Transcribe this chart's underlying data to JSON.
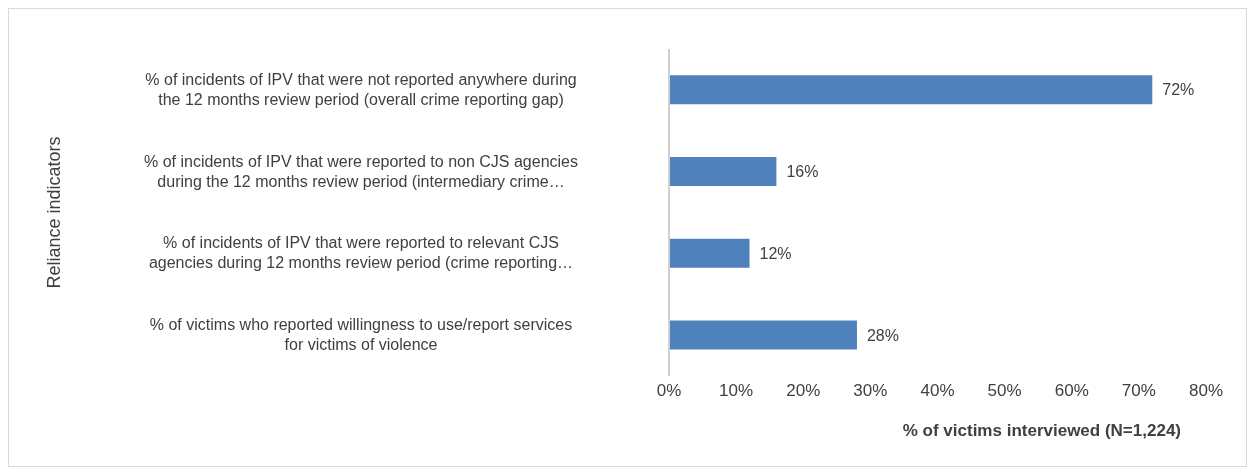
{
  "chart_data": {
    "type": "bar",
    "orientation": "horizontal",
    "ylabel": "Reliance indicators",
    "xlabel": "% of victims interviewed (N=1,224)",
    "categories": [
      "% of incidents of IPV that were not reported anywhere during the 12 months review period (overall crime reporting gap)",
      "% of incidents of IPV that were reported to non CJS agencies during the 12 months review period (intermediary crime…",
      "% of incidents of IPV that were reported to relevant CJS agencies during 12 months review period (crime reporting…",
      "% of victims who reported willingness to use/report services for victims of violence"
    ],
    "values": [
      72,
      16,
      12,
      28
    ],
    "value_labels": [
      "72%",
      "16%",
      "12%",
      "28%"
    ],
    "color": "#4f81bd",
    "xlim": [
      0,
      80
    ],
    "xticks": [
      {
        "value": 0,
        "label": "0%"
      },
      {
        "value": 10,
        "label": "10%"
      },
      {
        "value": 20,
        "label": "20%"
      },
      {
        "value": 30,
        "label": "30%"
      },
      {
        "value": 40,
        "label": "40%"
      },
      {
        "value": 50,
        "label": "50%"
      },
      {
        "value": 60,
        "label": "60%"
      },
      {
        "value": 70,
        "label": "70%"
      },
      {
        "value": 80,
        "label": "80%"
      }
    ]
  }
}
